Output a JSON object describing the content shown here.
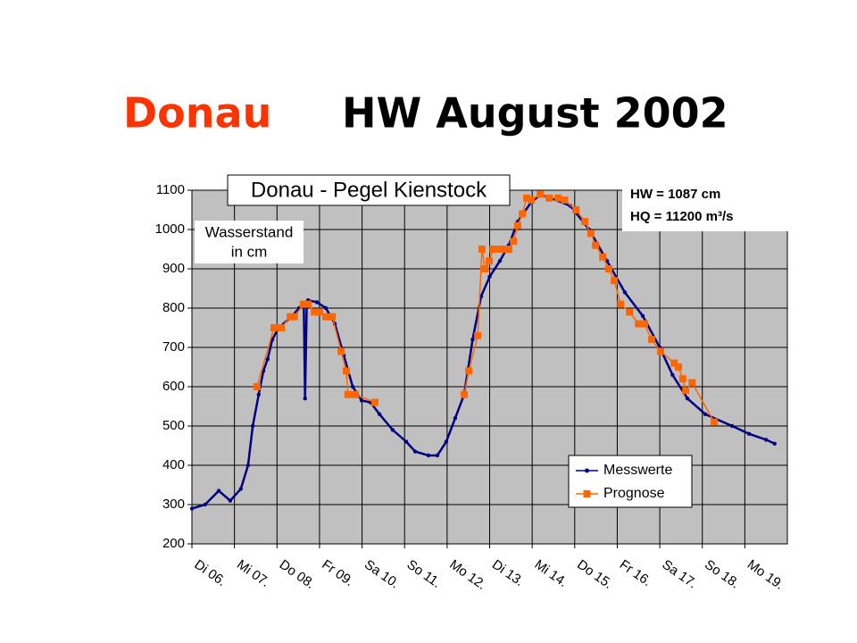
{
  "chart_data": {
    "type": "line",
    "title": "Donau - Pegel Kienstock",
    "heading": {
      "river": "Donau",
      "event": "HW August 2002"
    },
    "y_label_lines": [
      "Wasserstand",
      "in cm"
    ],
    "annotations": [
      "HW = 1087 cm",
      "HQ = 11200 m³/s"
    ],
    "xlim": [
      0,
      14
    ],
    "xticks": [
      {
        "value": 0,
        "label": "Di 06."
      },
      {
        "value": 1,
        "label": "Mi 07."
      },
      {
        "value": 2,
        "label": "Do 08."
      },
      {
        "value": 3,
        "label": "Fr 09."
      },
      {
        "value": 4,
        "label": "Sa 10."
      },
      {
        "value": 5,
        "label": "So 11."
      },
      {
        "value": 6,
        "label": "Mo 12."
      },
      {
        "value": 7,
        "label": "Di 13."
      },
      {
        "value": 8,
        "label": "Mi 14."
      },
      {
        "value": 9,
        "label": "Do 15."
      },
      {
        "value": 10,
        "label": "Fr 16."
      },
      {
        "value": 11,
        "label": "Sa 17."
      },
      {
        "value": 12,
        "label": "So 18."
      },
      {
        "value": 13,
        "label": "Mo 19."
      }
    ],
    "ylim": [
      200,
      1100
    ],
    "yticks": [
      200,
      300,
      400,
      500,
      600,
      700,
      800,
      900,
      1000,
      1100
    ],
    "grid": true,
    "legend": "lower-right",
    "series": [
      {
        "name": "Messwerte",
        "color": "#000080",
        "marker": "circle",
        "x": [
          0,
          0.31,
          0.63,
          0.9,
          1.15,
          1.32,
          1.43,
          1.57,
          1.68,
          1.78,
          1.89,
          2.04,
          2.31,
          2.52,
          2.63,
          2.66,
          2.7,
          2.73,
          2.94,
          3.15,
          3.36,
          3.57,
          3.78,
          3.99,
          4.2,
          4.41,
          4.72,
          5.04,
          5.25,
          5.56,
          5.77,
          5.98,
          6.19,
          6.4,
          6.6,
          6.8,
          7.0,
          7.24,
          7.45,
          7.66,
          7.98,
          8.19,
          8.4,
          8.9,
          9.34,
          9.76,
          10.18,
          10.6,
          11.0,
          11.3,
          11.65,
          12.07,
          12.7,
          13.1,
          13.5,
          13.7
        ],
        "values": [
          290,
          300,
          335,
          310,
          340,
          400,
          500,
          580,
          640,
          670,
          720,
          750,
          775,
          800,
          810,
          570,
          815,
          820,
          815,
          800,
          760,
          680,
          600,
          565,
          560,
          530,
          490,
          460,
          435,
          425,
          425,
          460,
          520,
          580,
          720,
          830,
          880,
          920,
          960,
          1020,
          1070,
          1088,
          1082,
          1060,
          1000,
          920,
          840,
          780,
          700,
          630,
          570,
          530,
          500,
          480,
          465,
          455
        ]
      },
      {
        "name": "Prognose",
        "color": "#ff6600",
        "marker": "square",
        "x": [
          1.53,
          1.93,
          2.1,
          2.31,
          2.41,
          2.62,
          2.73,
          2.88,
          3.0,
          3.15,
          3.3,
          3.51,
          3.63,
          3.67,
          3.84,
          4.3,
          5.0,
          6.4,
          6.51,
          6.72,
          6.82,
          6.89,
          6.99,
          7.08,
          7.24,
          7.35,
          7.45,
          7.56,
          7.66,
          7.77,
          7.87,
          7.98,
          8.19,
          8.4,
          8.61,
          8.76,
          9.03,
          9.24,
          9.38,
          9.49,
          9.66,
          9.8,
          9.93,
          10.08,
          10.29,
          10.5,
          10.64,
          10.81,
          11.02,
          11.34,
          11.44,
          11.54,
          11.61,
          11.76,
          12.28
        ],
        "values": [
          600,
          750,
          750,
          778,
          778,
          810,
          810,
          790,
          790,
          778,
          778,
          690,
          640,
          580,
          580,
          560,
          null,
          580,
          640,
          730,
          950,
          900,
          920,
          950,
          950,
          950,
          950,
          970,
          1010,
          1040,
          1080,
          1075,
          1090,
          1080,
          1080,
          1075,
          1050,
          1020,
          990,
          960,
          930,
          900,
          870,
          810,
          790,
          760,
          760,
          720,
          690,
          660,
          650,
          620,
          590,
          610,
          510
        ]
      }
    ]
  }
}
